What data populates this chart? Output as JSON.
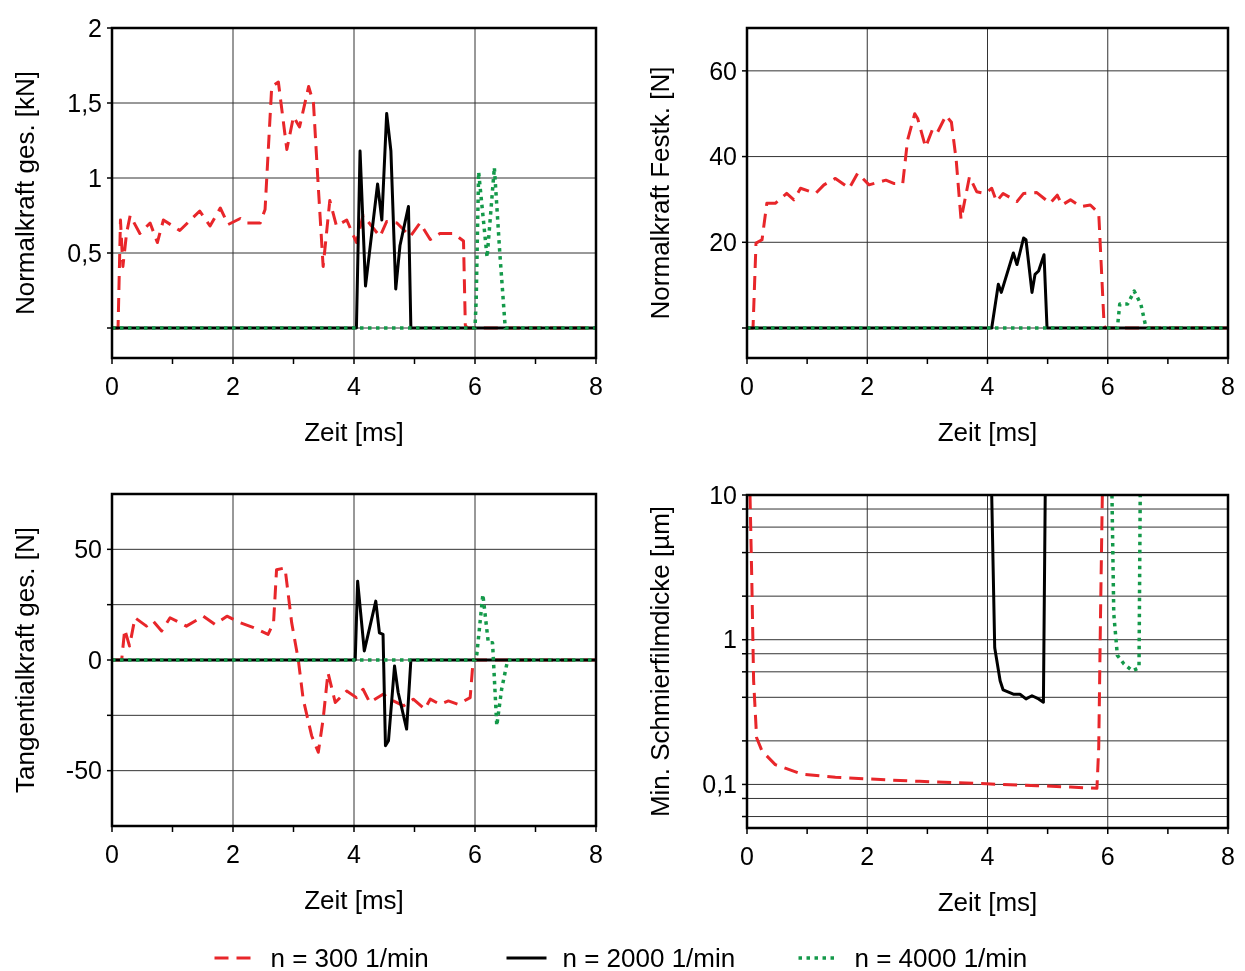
{
  "chart_data": [
    {
      "type": "line",
      "xlabel": "Zeit [ms]",
      "ylabel": "Normalkraft ges. [kN]",
      "xlim": [
        0,
        8
      ],
      "ylim": [
        -0.2,
        2
      ],
      "grid": true,
      "xticks": [
        0,
        {
          "value": 1,
          "label": null
        },
        2,
        {
          "value": 3,
          "label": null
        },
        4,
        {
          "value": 5,
          "label": null
        },
        6,
        {
          "value": 7,
          "label": null
        },
        8
      ],
      "yticks": [
        {
          "value": 0,
          "label": null
        },
        {
          "value": 0.5,
          "label": "0,5"
        },
        1,
        {
          "value": 1.5,
          "label": "1,5"
        },
        2
      ],
      "series": [
        {
          "color": "#e8262a",
          "line_style": "dashed",
          "x": [
            0,
            0.1,
            0.14,
            0.18,
            0.24,
            0.3,
            0.46,
            0.63,
            0.75,
            0.85,
            1.12,
            1.45,
            1.62,
            1.79,
            1.92,
            2.12,
            2.23,
            2.45,
            2.53,
            2.64,
            2.75,
            2.89,
            3.0,
            3.1,
            3.25,
            3.33,
            3.41,
            3.49,
            3.6,
            3.71,
            3.88,
            4.04,
            4.15,
            4.43,
            4.54,
            4.71,
            4.93,
            5.09,
            5.26,
            5.42,
            5.64,
            5.81,
            5.84,
            5.87,
            8
          ],
          "values": [
            0,
            0,
            0.72,
            0.41,
            0.63,
            0.75,
            0.63,
            0.7,
            0.57,
            0.72,
            0.65,
            0.78,
            0.68,
            0.8,
            0.69,
            0.73,
            0.7,
            0.7,
            0.79,
            1.61,
            1.64,
            1.19,
            1.41,
            1.34,
            1.61,
            1.5,
            0.94,
            0.41,
            0.85,
            0.68,
            0.72,
            0.57,
            0.75,
            0.61,
            0.71,
            0.7,
            0.61,
            0.7,
            0.59,
            0.63,
            0.63,
            0.58,
            0.02,
            0,
            0
          ]
        },
        {
          "color": "#000000",
          "line_style": "solid",
          "x": [
            0,
            4.04,
            4.1,
            4.19,
            4.39,
            4.46,
            4.54,
            4.61,
            4.69,
            4.76,
            4.9,
            4.94,
            8
          ],
          "values": [
            0,
            0,
            1.18,
            0.28,
            0.96,
            0.72,
            1.43,
            1.18,
            0.26,
            0.55,
            0.81,
            0,
            0
          ]
        },
        {
          "color": "#14994a",
          "line_style": "dotted",
          "x": [
            0,
            6.0,
            6.02,
            6.06,
            6.2,
            6.32,
            6.41,
            6.5,
            8
          ],
          "values": [
            0,
            0,
            0.19,
            1.04,
            0.47,
            1.07,
            0.5,
            0,
            0
          ]
        }
      ]
    },
    {
      "type": "line",
      "xlabel": "Zeit [ms]",
      "ylabel": "Normalkraft Festk. [N]",
      "xlim": [
        0,
        8
      ],
      "ylim": [
        -7,
        70
      ],
      "grid": true,
      "xticks": [
        0,
        {
          "value": 1,
          "label": null
        },
        2,
        {
          "value": 3,
          "label": null
        },
        4,
        {
          "value": 5,
          "label": null
        },
        6,
        {
          "value": 7,
          "label": null
        },
        8
      ],
      "yticks": [
        {
          "value": 0,
          "label": null
        },
        20,
        40,
        60
      ],
      "series": [
        {
          "color": "#e8262a",
          "line_style": "dashed",
          "x": [
            0,
            0.1,
            0.15,
            0.25,
            0.33,
            0.47,
            0.66,
            0.78,
            0.89,
            1.14,
            1.28,
            1.47,
            1.7,
            1.84,
            2.03,
            2.31,
            2.45,
            2.59,
            2.67,
            2.79,
            2.84,
            2.97,
            3.09,
            3.17,
            3.31,
            3.4,
            3.48,
            3.56,
            3.7,
            3.82,
            3.96,
            4.07,
            4.15,
            4.26,
            4.49,
            4.6,
            4.82,
            5.04,
            5.16,
            5.24,
            5.38,
            5.55,
            5.71,
            5.85,
            5.94,
            5.96,
            8
          ],
          "values": [
            0,
            0,
            19.8,
            20.6,
            29.1,
            29.1,
            31.4,
            29.9,
            32.6,
            31.4,
            33.4,
            34.9,
            32.6,
            36.1,
            33.4,
            34.5,
            33.7,
            33.7,
            43.8,
            50,
            48.8,
            42.2,
            46.5,
            45.7,
            49.6,
            48,
            39.1,
            25.3,
            35.3,
            31.8,
            31.4,
            32.6,
            29.5,
            31.4,
            29.5,
            31.4,
            31.6,
            29.1,
            31,
            28.7,
            29.9,
            28.3,
            28.7,
            26.8,
            0.5,
            0,
            0
          ]
        },
        {
          "color": "#000000",
          "line_style": "solid",
          "x": [
            0,
            4.07,
            4.18,
            4.23,
            4.43,
            4.49,
            4.6,
            4.64,
            4.74,
            4.79,
            4.85,
            4.94,
            4.99,
            8
          ],
          "values": [
            0,
            0,
            10.2,
            8.3,
            17.5,
            14.8,
            21,
            20.6,
            8.3,
            12.5,
            13.3,
            17.1,
            0,
            0
          ]
        },
        {
          "color": "#14994a",
          "line_style": "dotted",
          "x": [
            0,
            6.16,
            6.2,
            6.33,
            6.44,
            6.55,
            6.63,
            6.66,
            8
          ],
          "values": [
            0,
            0,
            5.6,
            5.6,
            8.6,
            5.6,
            0.5,
            0,
            0
          ]
        }
      ]
    },
    {
      "type": "line",
      "xlabel": "Zeit [ms]",
      "ylabel": "Tangentialkraft ges. [N]",
      "xlim": [
        0,
        8
      ],
      "ylim": [
        -75,
        75
      ],
      "grid": true,
      "xticks": [
        0,
        {
          "value": 1,
          "label": null
        },
        2,
        {
          "value": 3,
          "label": null
        },
        4,
        {
          "value": 5,
          "label": null
        },
        6,
        {
          "value": 7,
          "label": null
        },
        8
      ],
      "yticks": [
        -50,
        {
          "value": -25,
          "label": null
        },
        0,
        {
          "value": 25,
          "label": null
        },
        50
      ],
      "series": [
        {
          "color": "#e8262a",
          "line_style": "dashed",
          "x": [
            0,
            0.16,
            0.21,
            0.29,
            0.38,
            0.57,
            0.68,
            0.82,
            0.96,
            1.07,
            1.23,
            1.51,
            1.7,
            1.9,
            2.12,
            2.34,
            2.58,
            2.67,
            2.72,
            2.86,
            2.97,
            3.08,
            3.16,
            3.3,
            3.41,
            3.49,
            3.57,
            3.69,
            3.88,
            4.04,
            4.15,
            4.26,
            4.48,
            4.65,
            4.82,
            4.98,
            5.17,
            5.26,
            5.42,
            5.56,
            5.72,
            5.92,
            5.97,
            8
          ],
          "values": [
            0,
            0,
            13.8,
            6.3,
            19.1,
            15.3,
            17.6,
            13.1,
            19.1,
            17.6,
            15.3,
            19.8,
            16.1,
            19.8,
            16.8,
            14.6,
            11.6,
            16.8,
            40.8,
            41.6,
            16.8,
            0,
            -17.7,
            -34.2,
            -41.7,
            -26.7,
            -5.7,
            -19.2,
            -14,
            -17,
            -13.2,
            -19.2,
            -15.5,
            -18.5,
            -20.7,
            -17.7,
            -22.2,
            -17.7,
            -20,
            -18.5,
            -20,
            -17,
            0,
            0
          ]
        },
        {
          "color": "#000000",
          "line_style": "solid",
          "x": [
            0,
            4.02,
            4.06,
            4.17,
            4.36,
            4.42,
            4.48,
            4.52,
            4.57,
            4.67,
            4.73,
            4.87,
            4.94,
            8
          ],
          "values": [
            0,
            0,
            35.6,
            4.1,
            26.6,
            12.3,
            11.6,
            -38.7,
            -36.5,
            -2.7,
            -14.7,
            -31.2,
            0,
            0
          ]
        },
        {
          "color": "#14994a",
          "line_style": "dotted",
          "x": [
            0,
            6.0,
            6.03,
            6.13,
            6.22,
            6.29,
            6.36,
            6.44,
            6.54,
            8
          ],
          "values": [
            0,
            0,
            2.6,
            29.6,
            7.8,
            7.8,
            -29.7,
            -13.2,
            0,
            0
          ]
        }
      ]
    },
    {
      "type": "line",
      "xlabel": "Zeit [ms]",
      "ylabel": "Min. Schmierfilmdicke [µm]",
      "xlim": [
        0,
        8
      ],
      "ylim": [
        0.05,
        10
      ],
      "log": true,
      "grid": true,
      "legend": "bottom",
      "xticks": [
        0,
        {
          "value": 1,
          "label": null
        },
        2,
        {
          "value": 3,
          "label": null
        },
        4,
        {
          "value": 5,
          "label": null
        },
        6,
        {
          "value": 7,
          "label": null
        },
        8
      ],
      "yticks": [
        {
          "value": 0.06,
          "label": null
        },
        {
          "value": 0.08,
          "label": null
        },
        {
          "value": 0.1,
          "label": "0,1"
        },
        {
          "value": 0.2,
          "label": null
        },
        {
          "value": 0.4,
          "label": null
        },
        {
          "value": 0.6,
          "label": null
        },
        {
          "value": 0.8,
          "label": null
        },
        1,
        {
          "value": 2,
          "label": null
        },
        {
          "value": 4,
          "label": null
        },
        {
          "value": 6,
          "label": null
        },
        {
          "value": 8,
          "label": null
        },
        10
      ],
      "series": [
        {
          "name": "n = 300 1/min",
          "color": "#e8262a",
          "line_style": "dashed",
          "x": [
            0.05,
            0.08,
            0.11,
            0.16,
            0.25,
            0.47,
            0.91,
            1.47,
            2.03,
            2.87,
            3.98,
            4.82,
            5.38,
            5.82,
            5.85,
            5.88,
            5.91
          ],
          "values": [
            10,
            2.57,
            0.52,
            0.21,
            0.17,
            0.137,
            0.118,
            0.112,
            0.109,
            0.105,
            0.101,
            0.098,
            0.096,
            0.094,
            0.18,
            1.5,
            10
          ]
        },
        {
          "name": "n = 2000 1/min",
          "color": "#000000",
          "line_style": "solid",
          "x": [
            4.07,
            4.12,
            4.21,
            4.26,
            4.43,
            4.54,
            4.64,
            4.74,
            4.85,
            4.93,
            4.96
          ],
          "values": [
            10,
            0.88,
            0.52,
            0.45,
            0.42,
            0.42,
            0.39,
            0.41,
            0.39,
            0.37,
            10
          ]
        },
        {
          "name": "n = 4000 1/min",
          "color": "#14994a",
          "line_style": "dotted",
          "x": [
            6.07,
            6.1,
            6.16,
            6.27,
            6.41,
            6.52,
            6.54
          ],
          "values": [
            10,
            1.51,
            0.78,
            0.68,
            0.61,
            0.64,
            10
          ]
        }
      ]
    }
  ]
}
